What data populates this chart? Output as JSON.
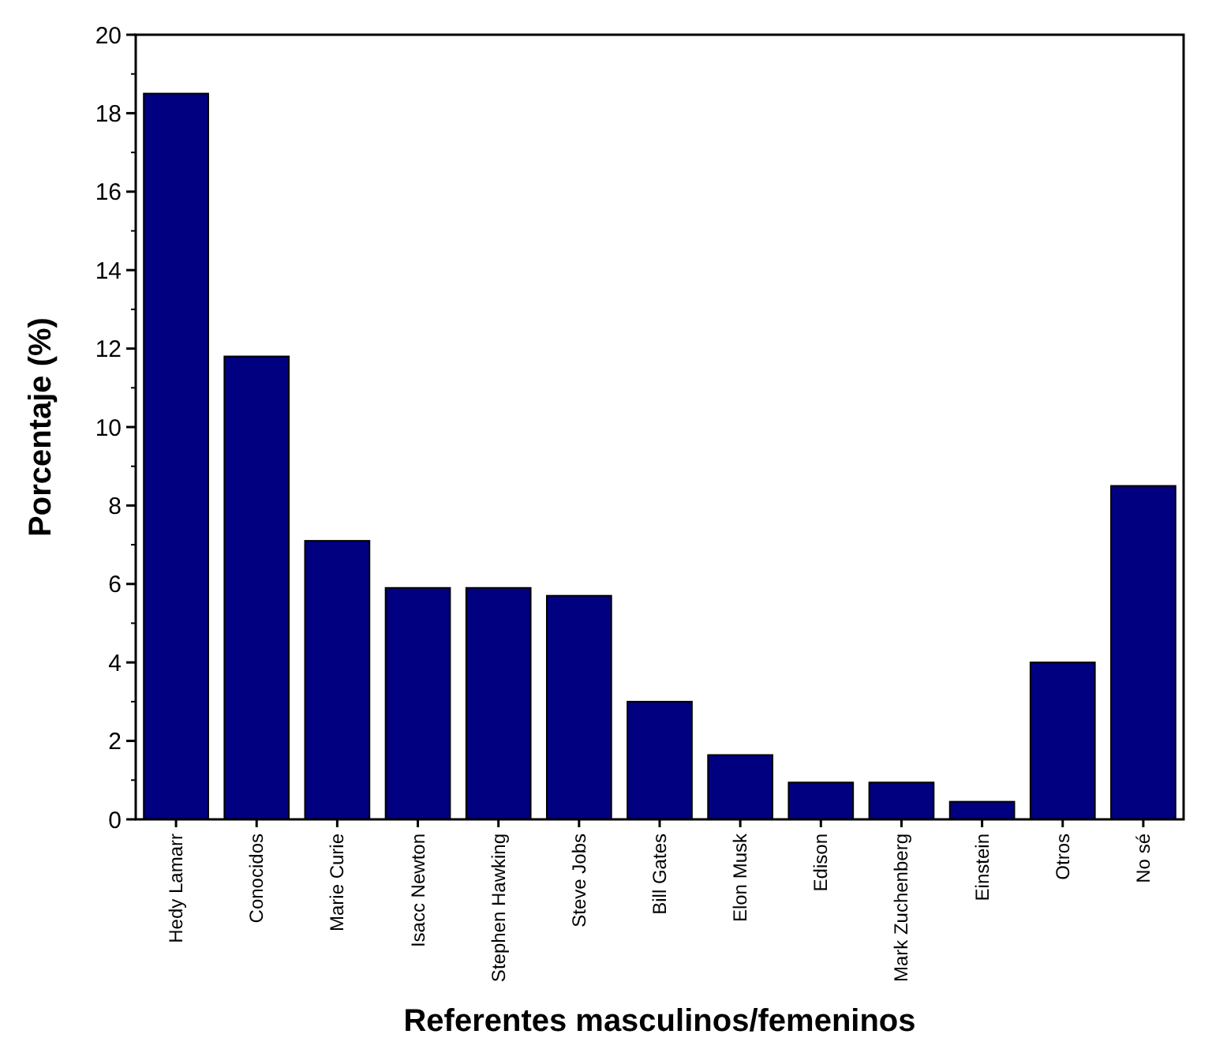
{
  "chart_data": {
    "type": "bar",
    "xlabel": "Referentes masculinos/femeninos",
    "ylabel": "Porcentaje (%)",
    "categories": [
      "Hedy Lamarr",
      "Conocidos",
      "Marie Curie",
      "Isacc Newton",
      "Stephen Hawking",
      "Steve Jobs",
      "Bill Gates",
      "Elon Musk",
      "Edison",
      "Mark Zuchenberg",
      "Einstein",
      "Otros",
      "No sé"
    ],
    "values": [
      18.5,
      11.8,
      7.1,
      5.9,
      5.9,
      5.7,
      3.0,
      1.64,
      0.94,
      0.94,
      0.45,
      4.0,
      8.5
    ],
    "color": "#000080",
    "ylim": [
      0,
      20
    ],
    "yticks": [
      0,
      2,
      4,
      6,
      8,
      10,
      12,
      14,
      16,
      18,
      20
    ],
    "grid": false
  }
}
